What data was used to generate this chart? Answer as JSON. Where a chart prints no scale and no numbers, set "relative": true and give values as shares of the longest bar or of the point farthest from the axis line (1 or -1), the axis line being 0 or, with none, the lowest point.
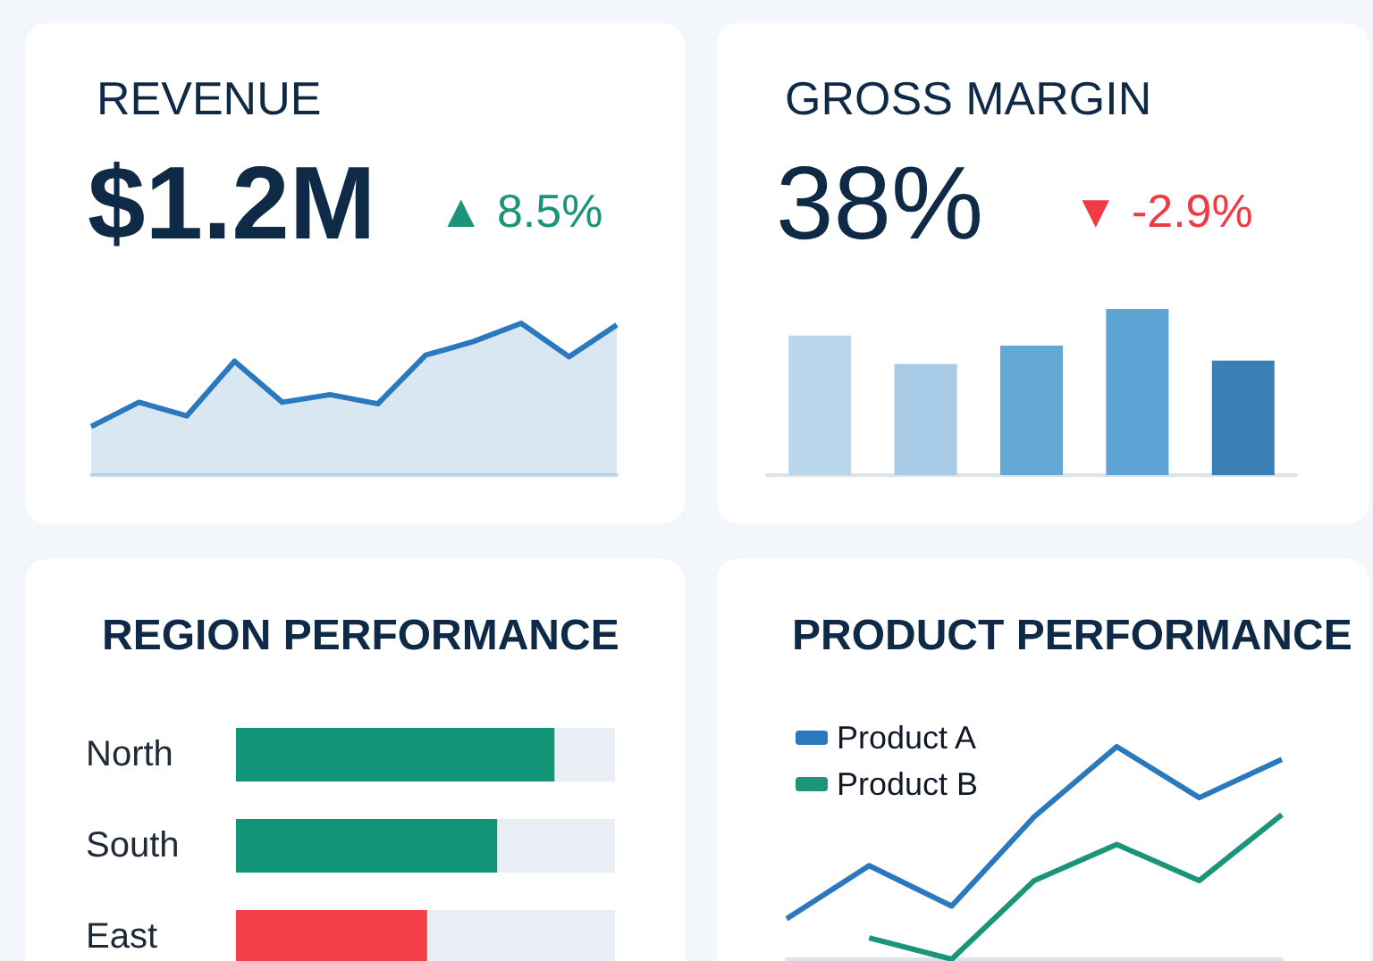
{
  "chart_data": [
    {
      "type": "area",
      "title": "REVENUE",
      "annotations": [
        "$1.2M",
        "▲ 8.5%"
      ],
      "categories": [
        null,
        null,
        null,
        null,
        null,
        null,
        null,
        null,
        null,
        null,
        null,
        null
      ],
      "values": [
        0.32,
        0.48,
        0.39,
        0.75,
        0.48,
        0.53,
        0.47,
        0.79,
        0.88,
        1,
        0.78,
        0.99
      ],
      "color": "#2a78bd",
      "relative": true
    },
    {
      "type": "bar",
      "title": "GROSS MARGIN",
      "annotations": [
        "38%",
        "▼ -2.9%"
      ],
      "categories": [
        null,
        null,
        null,
        null,
        null
      ],
      "values": [
        0.84,
        0.67,
        0.78,
        1,
        0.69
      ],
      "colors": [
        "#b9d6ea",
        "#a7cbe6",
        "#64a8d8",
        "#5ea5d6",
        "#3a7fb5"
      ],
      "relative": true
    },
    {
      "type": "bar",
      "orientation": "horizontal",
      "title": "REGION PERFORMANCE",
      "categories": [
        "North",
        "South",
        "East"
      ],
      "values": [
        1,
        0.82,
        0.6
      ],
      "colors": [
        "#129479",
        "#129479",
        "#f43f48"
      ],
      "relative": true
    },
    {
      "type": "line",
      "title": "PRODUCT PERFORMANCE",
      "categories": [
        null,
        null,
        null,
        null,
        null,
        null,
        null
      ],
      "series": [
        {
          "name": "Product A",
          "color": "#2a78bd",
          "values": [
            0.19,
            0.44,
            0.25,
            0.67,
            1,
            0.76,
            0.94
          ]
        },
        {
          "name": "Product B",
          "color": "#1a9579",
          "values": [
            null,
            0.1,
            0,
            0.37,
            0.54,
            0.37,
            0.68
          ]
        }
      ],
      "legend": "top left",
      "relative": true
    }
  ]
}
